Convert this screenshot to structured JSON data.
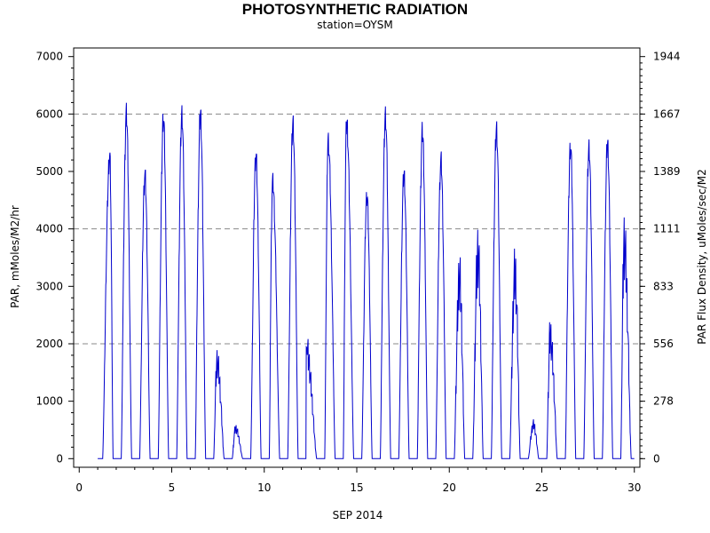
{
  "chart_data": {
    "type": "line",
    "title": "PHOTOSYNTHETIC RADIATION",
    "subtitle": "station=OYSM",
    "xlabel": "SEP 2014",
    "ylabel": "PAR, mMoles/M2/hr",
    "y2label": "PAR Flux Density, uMoles/sec/M2",
    "xlim": [
      -0.3,
      30.3
    ],
    "ylim": [
      -150,
      7150
    ],
    "y2_factor": 0.2778,
    "grid": "horizontal dashed at 2000, 4000, 6000",
    "x_ticks": [
      0,
      5,
      10,
      15,
      20,
      25,
      30
    ],
    "y_ticks": [
      0,
      1000,
      2000,
      3000,
      4000,
      5000,
      6000,
      7000
    ],
    "y2_ticks": [
      0,
      278,
      556,
      833,
      1111,
      1389,
      1667,
      1944
    ],
    "line_color": "#0000cc",
    "daily_peaks": [
      {
        "day": 1,
        "peak": 5270,
        "time": 1.65
      },
      {
        "day": 2,
        "peak": 6000,
        "time": 2.55
      },
      {
        "day": 3,
        "peak": 4950,
        "time": 3.55
      },
      {
        "day": 4,
        "peak": 5950,
        "time": 4.55
      },
      {
        "day": 5,
        "peak": 6000,
        "time": 5.55
      },
      {
        "day": 6,
        "peak": 6020,
        "time": 6.55
      },
      {
        "day": 7,
        "peak": 1700,
        "time": 7.45
      },
      {
        "day": 8,
        "peak": 530,
        "time": 8.45
      },
      {
        "day": 9,
        "peak": 5300,
        "time": 9.55
      },
      {
        "day": 10,
        "peak": 4830,
        "time": 10.45
      },
      {
        "day": 11,
        "peak": 5850,
        "time": 11.55
      },
      {
        "day": 12,
        "peak": 1950,
        "time": 12.25
      },
      {
        "day": 13,
        "peak": 5550,
        "time": 13.45
      },
      {
        "day": 14,
        "peak": 5880,
        "time": 14.45
      },
      {
        "day": 15,
        "peak": 4600,
        "time": 15.55
      },
      {
        "day": 16,
        "peak": 5980,
        "time": 16.55
      },
      {
        "day": 17,
        "peak": 4970,
        "time": 17.55
      },
      {
        "day": 18,
        "peak": 5700,
        "time": 18.55
      },
      {
        "day": 19,
        "peak": 5200,
        "time": 19.55
      },
      {
        "day": 20,
        "peak": 3180,
        "time": 20.55
      },
      {
        "day": 21,
        "peak": 3600,
        "time": 21.55
      },
      {
        "day": 22,
        "peak": 5750,
        "time": 22.55
      },
      {
        "day": 23,
        "peak": 3250,
        "time": 23.55
      },
      {
        "day": 24,
        "peak": 600,
        "time": 24.55
      },
      {
        "day": 25,
        "peak": 2150,
        "time": 25.45
      },
      {
        "day": 26,
        "peak": 5450,
        "time": 26.55
      },
      {
        "day": 27,
        "peak": 5420,
        "time": 27.55
      },
      {
        "day": 28,
        "peak": 5500,
        "time": 28.55
      },
      {
        "day": 29,
        "peak": 3780,
        "time": 29.45
      }
    ]
  }
}
